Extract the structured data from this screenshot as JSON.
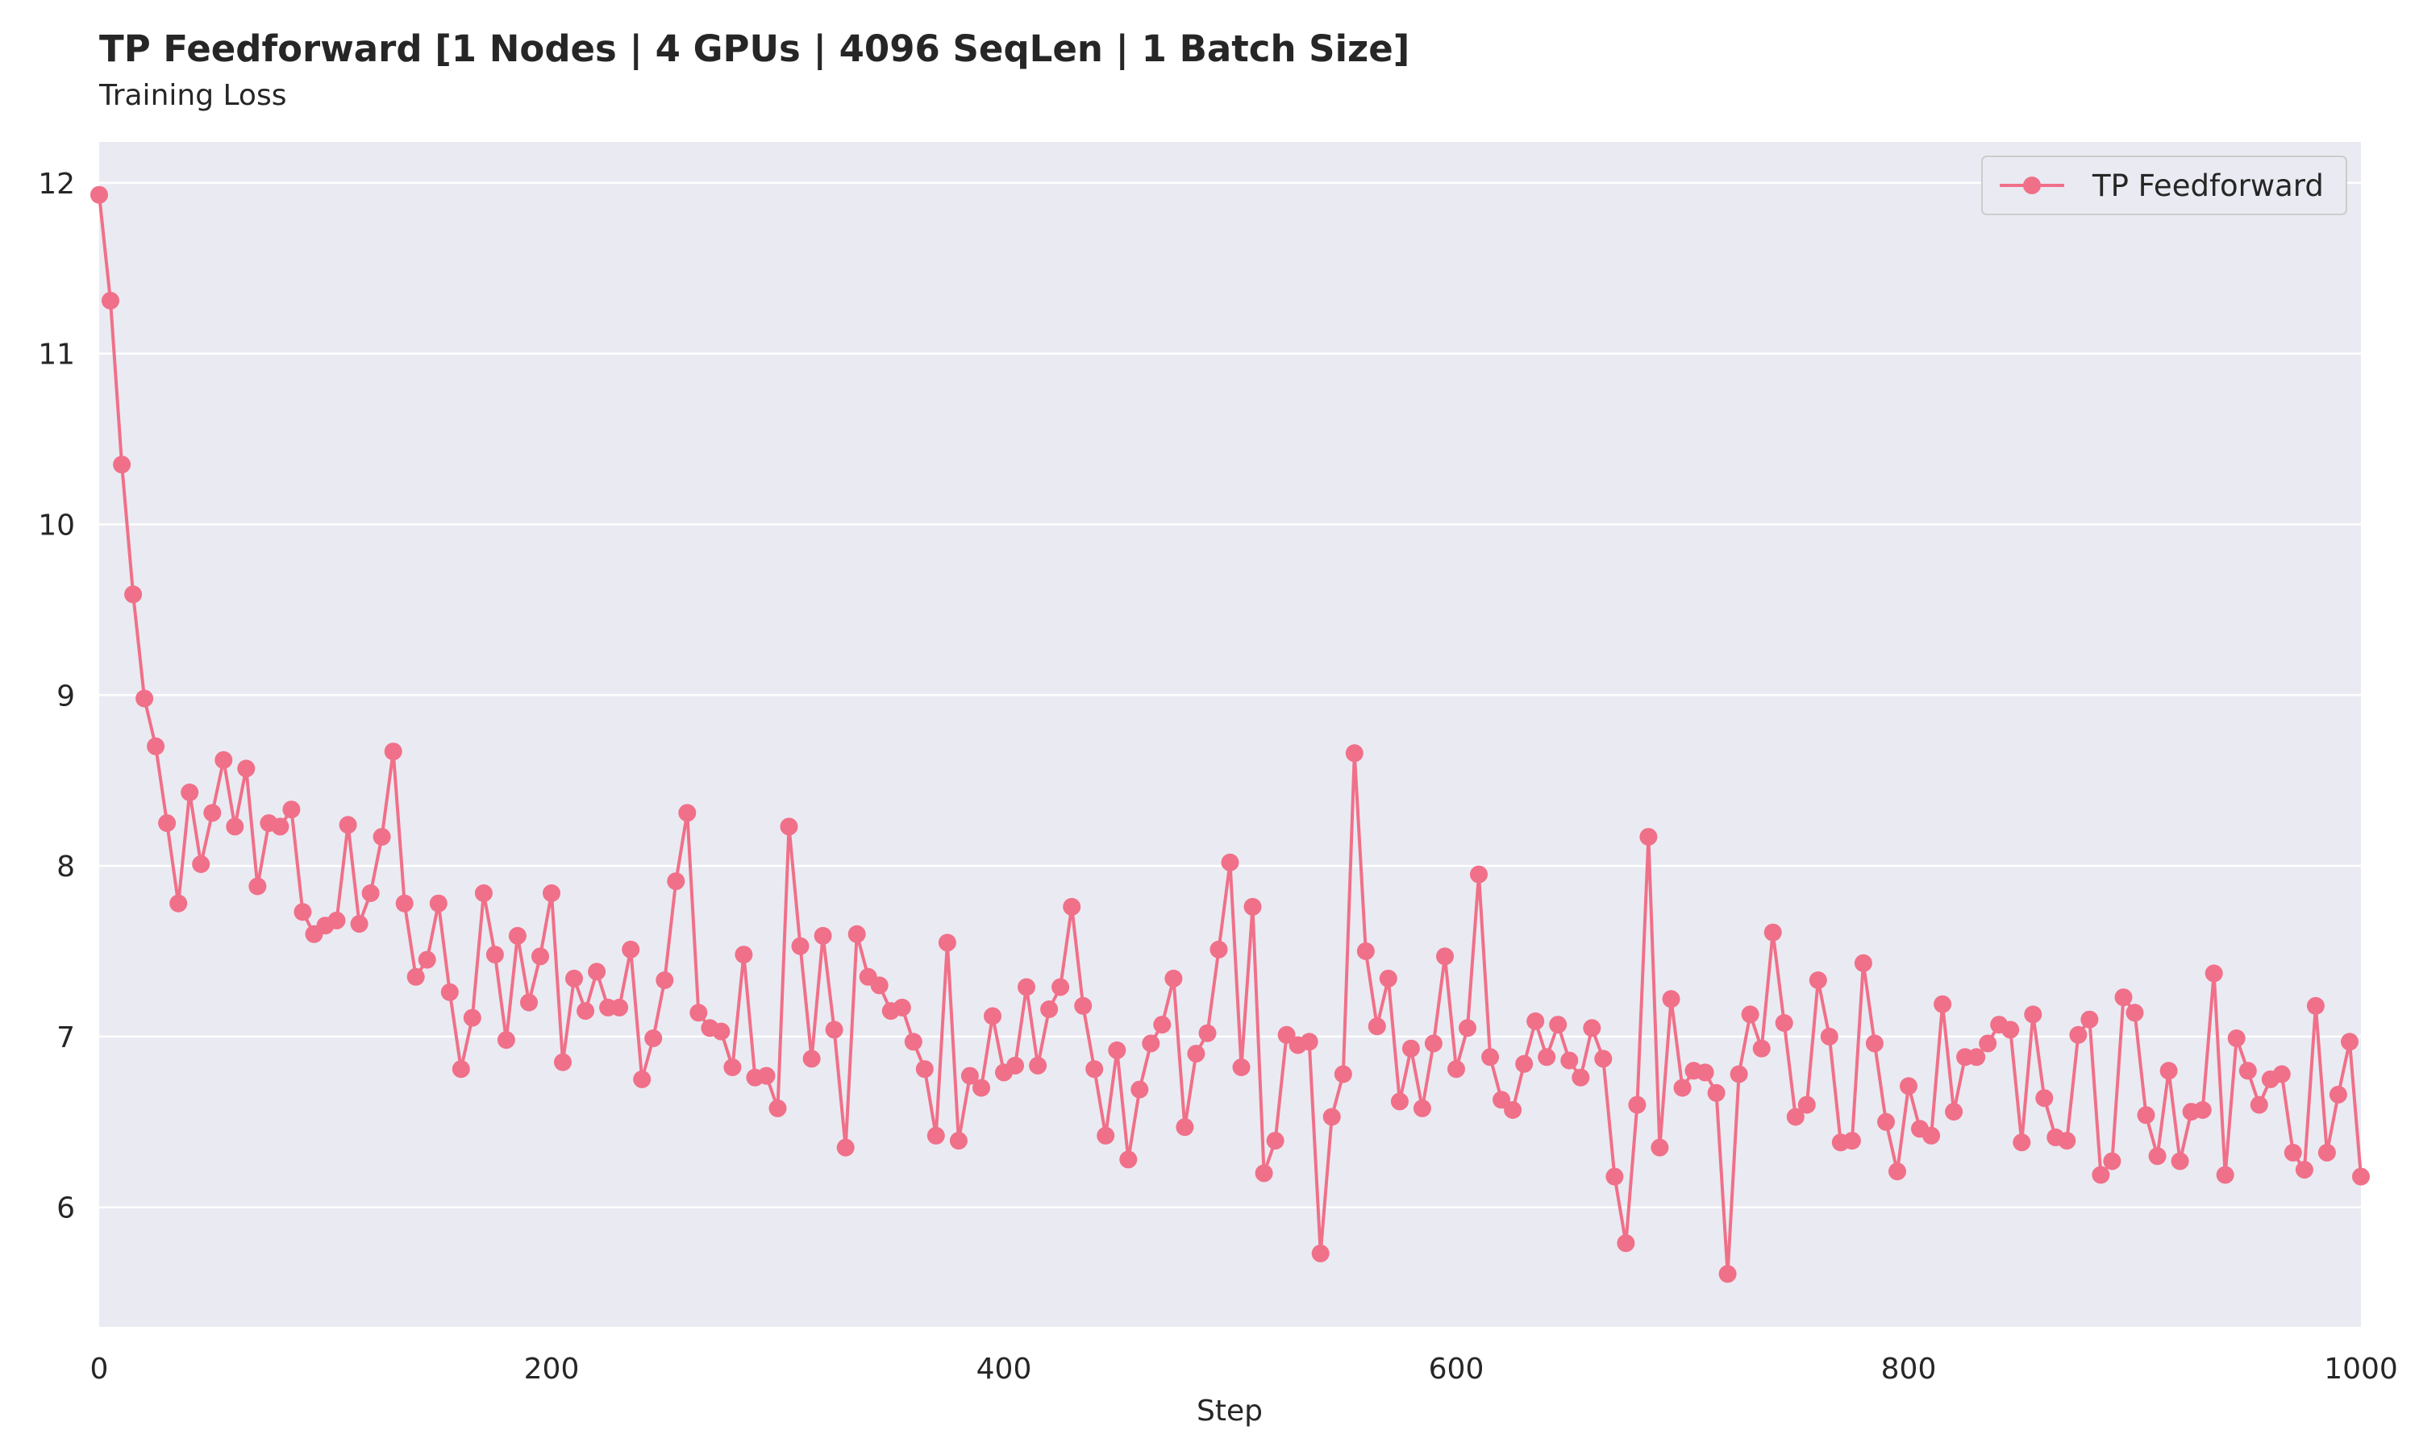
{
  "chart_data": {
    "type": "line",
    "title": "TP Feedforward [1 Nodes | 4 GPUs | 4096 SeqLen | 1 Batch Size]",
    "subtitle": "Training Loss",
    "xlabel": "Step",
    "ylabel": "",
    "xlim": [
      0,
      1000
    ],
    "ylim": [
      5.3,
      12.24
    ],
    "xticks": [
      0,
      200,
      400,
      600,
      800,
      1000
    ],
    "yticks": [
      6,
      7,
      8,
      9,
      10,
      11,
      12
    ],
    "grid": true,
    "legend_position": "top-right",
    "colors": {
      "series": "#f07089",
      "background": "#eaeaf2",
      "grid": "#ffffff",
      "text": "#262626"
    },
    "series": [
      {
        "name": "TP Feedforward",
        "x": [
          0,
          5,
          10,
          15,
          20,
          25,
          30,
          35,
          40,
          45,
          50,
          55,
          60,
          65,
          70,
          75,
          80,
          85,
          90,
          95,
          100,
          105,
          110,
          115,
          120,
          125,
          130,
          135,
          140,
          145,
          150,
          155,
          160,
          165,
          170,
          175,
          180,
          185,
          190,
          195,
          200,
          205,
          210,
          215,
          220,
          225,
          230,
          235,
          240,
          245,
          250,
          255,
          260,
          265,
          270,
          275,
          280,
          285,
          290,
          295,
          300,
          305,
          310,
          315,
          320,
          325,
          330,
          335,
          340,
          345,
          350,
          355,
          360,
          365,
          370,
          375,
          380,
          385,
          390,
          395,
          400,
          405,
          410,
          415,
          420,
          425,
          430,
          435,
          440,
          445,
          450,
          455,
          460,
          465,
          470,
          475,
          480,
          485,
          490,
          495,
          500,
          505,
          510,
          515,
          520,
          525,
          530,
          535,
          540,
          545,
          550,
          555,
          560,
          565,
          570,
          575,
          580,
          585,
          590,
          595,
          600,
          605,
          610,
          615,
          620,
          625,
          630,
          635,
          640,
          645,
          650,
          655,
          660,
          665,
          670,
          675,
          680,
          685,
          690,
          695,
          700,
          705,
          710,
          715,
          720,
          725,
          730,
          735,
          740,
          745,
          750,
          755,
          760,
          765,
          770,
          775,
          780,
          785,
          790,
          795,
          800,
          805,
          810,
          815,
          820,
          825,
          830,
          835,
          840,
          845,
          850,
          855,
          860,
          865,
          870,
          875,
          880,
          885,
          890,
          895,
          900,
          905,
          910,
          915,
          920,
          925,
          930,
          935,
          940,
          945,
          950,
          955,
          960,
          965,
          970,
          975,
          980,
          985,
          990,
          995,
          1000
        ],
        "y": [
          11.93,
          11.31,
          10.35,
          9.59,
          8.98,
          8.7,
          8.25,
          7.78,
          8.43,
          8.01,
          8.31,
          8.62,
          8.23,
          8.57,
          7.88,
          8.25,
          8.23,
          8.33,
          7.73,
          7.6,
          7.65,
          7.68,
          8.24,
          7.66,
          7.84,
          8.17,
          8.67,
          7.78,
          7.35,
          7.45,
          7.78,
          7.26,
          6.81,
          7.11,
          7.84,
          7.48,
          6.98,
          7.59,
          7.2,
          7.47,
          7.84,
          6.85,
          7.34,
          7.15,
          7.38,
          7.17,
          7.17,
          7.51,
          6.75,
          6.99,
          7.33,
          7.91,
          8.31,
          7.14,
          7.05,
          7.03,
          6.82,
          7.48,
          6.76,
          6.77,
          6.58,
          8.23,
          7.53,
          6.87,
          7.59,
          7.04,
          6.35,
          7.6,
          7.35,
          7.3,
          7.15,
          7.17,
          6.97,
          6.81,
          6.42,
          7.55,
          6.39,
          6.77,
          6.7,
          7.12,
          6.79,
          6.83,
          7.29,
          6.83,
          7.16,
          7.29,
          7.76,
          7.18,
          6.81,
          6.42,
          6.92,
          6.28,
          6.69,
          6.96,
          7.07,
          7.34,
          6.47,
          6.9,
          7.02,
          7.51,
          8.02,
          6.82,
          7.76,
          6.2,
          6.39,
          7.01,
          6.95,
          6.97,
          5.73,
          6.53,
          6.78,
          8.66,
          7.5,
          7.06,
          7.34,
          6.62,
          6.93,
          6.58,
          6.96,
          7.47,
          6.81,
          7.05,
          7.95,
          6.88,
          6.63,
          6.57,
          6.84,
          7.09,
          6.88,
          7.07,
          6.86,
          6.76,
          7.05,
          6.87,
          6.18,
          5.79,
          6.6,
          8.17,
          6.35,
          7.22,
          6.7,
          6.8,
          6.79,
          6.67,
          5.61,
          6.78,
          7.13,
          6.93,
          7.61,
          7.08,
          6.53,
          6.6,
          7.33,
          7.0,
          6.38,
          6.39,
          7.43,
          6.96,
          6.5,
          6.21,
          6.71,
          6.46,
          6.42,
          7.19,
          6.56,
          6.88,
          6.88,
          6.96,
          7.07,
          7.04,
          6.38,
          7.13,
          6.64,
          6.41,
          6.39,
          7.01,
          7.1,
          6.19,
          6.27,
          7.23,
          7.14,
          6.54,
          6.3,
          6.8,
          6.27,
          6.56,
          6.57,
          7.37,
          6.19,
          6.99,
          6.8,
          6.6,
          6.75,
          6.78,
          6.32,
          6.22,
          7.18,
          6.32,
          6.66,
          6.97,
          6.18
        ]
      }
    ]
  }
}
